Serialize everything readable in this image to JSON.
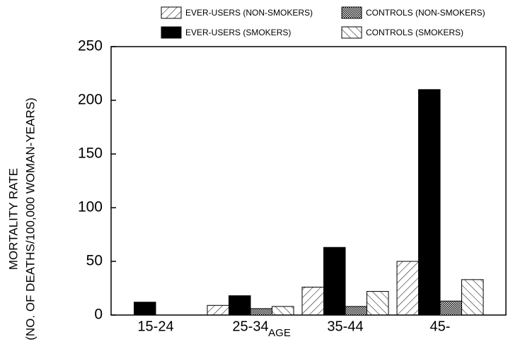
{
  "chart_data": {
    "type": "bar",
    "categories": [
      "15-24",
      "25-34",
      "35-44",
      "45-"
    ],
    "x_label": "AGE",
    "y_label": [
      "MORTALITY RATE",
      "(NO. OF DEATHS/100,000 WOMAN-YEARS)"
    ],
    "series": [
      {
        "name": "EVER-USERS (NON-SMOKERS)",
        "color": "#000000",
        "pattern": "hatch-forward",
        "values": [
          0,
          9,
          26,
          50
        ]
      },
      {
        "name": "EVER-USERS (SMOKERS)",
        "color": "#000000",
        "pattern": "solid",
        "values": [
          12,
          18,
          63,
          210
        ]
      },
      {
        "name": "CONTROLS (NON-SMOKERS)",
        "color": "#000000",
        "pattern": "dots",
        "values": [
          0,
          6,
          8,
          13
        ]
      },
      {
        "name": "CONTROLS (SMOKERS)",
        "color": "#000000",
        "pattern": "hatch-back",
        "values": [
          0,
          8,
          22,
          33
        ]
      }
    ],
    "ylim": [
      0,
      250
    ],
    "yticks": [
      0,
      50,
      100,
      150,
      200,
      250
    ],
    "grid": false
  }
}
